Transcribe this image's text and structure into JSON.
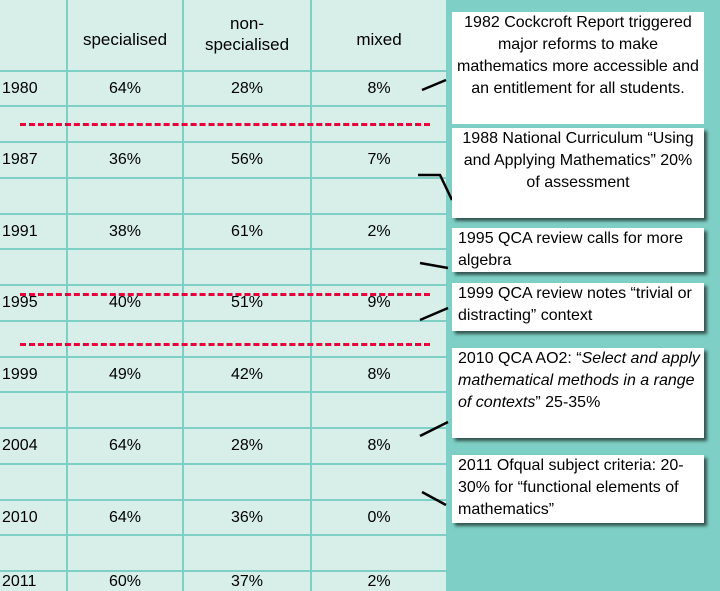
{
  "table": {
    "headers": [
      "",
      "specialised",
      "non-specialised",
      "mixed"
    ],
    "rows": [
      {
        "year": "1980",
        "specialised": "64%",
        "non_specialised": "28%",
        "mixed": "8%"
      },
      {
        "year": "1987",
        "specialised": "36%",
        "non_specialised": "56%",
        "mixed": "7%"
      },
      {
        "year": "1991",
        "specialised": "38%",
        "non_specialised": "61%",
        "mixed": "2%"
      },
      {
        "year": "1995",
        "specialised": "40%",
        "non_specialised": "51%",
        "mixed": "9%"
      },
      {
        "year": "1999",
        "specialised": "49%",
        "non_specialised": "42%",
        "mixed": "8%"
      },
      {
        "year": "2004",
        "specialised": "64%",
        "non_specialised": "28%",
        "mixed": "8%"
      },
      {
        "year": "2010",
        "specialised": "64%",
        "non_specialised": "36%",
        "mixed": "0%"
      },
      {
        "year": "2011",
        "specialised": "60%",
        "non_specialised": "37%",
        "mixed": "2%"
      }
    ]
  },
  "header_labels": {
    "specialised": "specialised",
    "non_specialised_line1": "non-",
    "non_specialised_line2": "specialised",
    "mixed": "mixed"
  },
  "notes": {
    "cockcroft": "1982 Cockcroft Report triggered major reforms to make mathematics more accessible and an entitlement for all students.",
    "national_curriculum": "1988 National Curriculum “Using and Applying Mathematics” 20% of assessment",
    "qca_1995": "1995 QCA review calls for more algebra",
    "qca_1999": "1999 QCA review notes “trivial or distracting” context",
    "qca_2010_prefix": "2010 QCA AO2: “",
    "qca_2010_italic": "Select and apply mathematical methods in a range of contexts",
    "qca_2010_suffix": "” 25-35%",
    "ofqual_2011": "2011 Ofqual subject criteria: 20-30% for “functional elements of mathematics”"
  },
  "colors": {
    "background": "#7ecfc5",
    "cell": "#d7eee9",
    "dashed_line": "#e8003a",
    "note_bg": "#ffffff"
  }
}
